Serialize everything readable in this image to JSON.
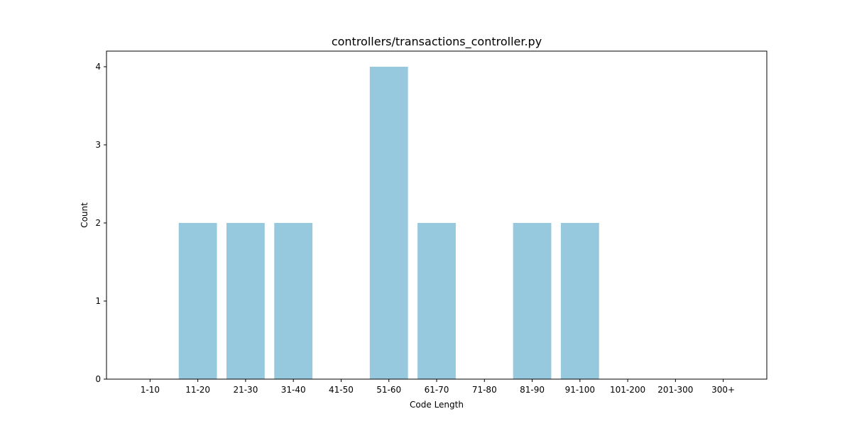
{
  "chart_data": {
    "type": "bar",
    "title": "controllers/transactions_controller.py",
    "xlabel": "Code Length",
    "ylabel": "Count",
    "categories": [
      "1-10",
      "11-20",
      "21-30",
      "31-40",
      "41-50",
      "51-60",
      "61-70",
      "71-80",
      "81-90",
      "91-100",
      "101-200",
      "201-300",
      "300+"
    ],
    "values": [
      0,
      2,
      2,
      2,
      0,
      4,
      2,
      0,
      2,
      2,
      0,
      0,
      0
    ],
    "ylim": [
      0,
      4.2
    ],
    "yticks": [
      0,
      1,
      2,
      3,
      4
    ],
    "grid": false,
    "legend": "none",
    "bar_color": "#96c9dd"
  }
}
